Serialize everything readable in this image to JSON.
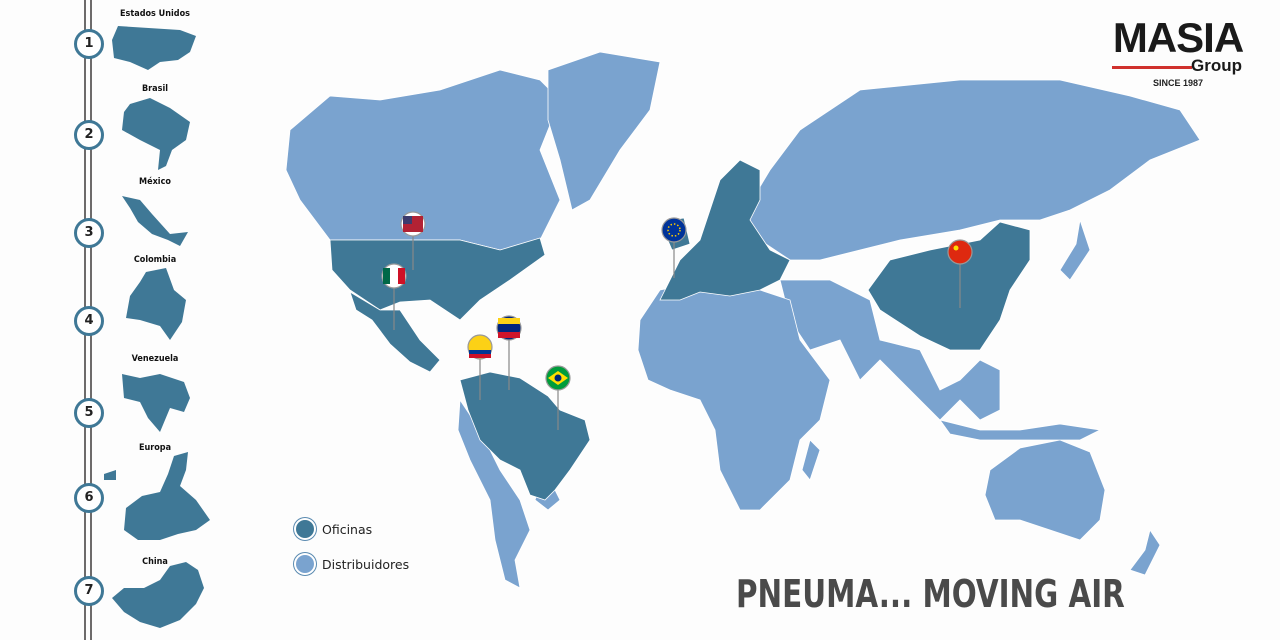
{
  "colors": {
    "office": "#3f7896",
    "distributor": "#7aa3cf",
    "accent_red": "#d0312d"
  },
  "logo": {
    "name": "MASIA",
    "sub": "Group",
    "since": "SINCE 1987"
  },
  "locations": [
    {
      "n": "1",
      "label": "Estados Unidos"
    },
    {
      "n": "2",
      "label": "Brasil"
    },
    {
      "n": "3",
      "label": "México"
    },
    {
      "n": "4",
      "label": "Colombia"
    },
    {
      "n": "5",
      "label": "Venezuela"
    },
    {
      "n": "6",
      "label": "Europa"
    },
    {
      "n": "7",
      "label": "China"
    }
  ],
  "legend": {
    "offices": "Oficinas",
    "distributors": "Distribuidores"
  },
  "slogan": "PNEUMA... MOVING AIR",
  "pins": [
    "usa-flag-icon",
    "mexico-flag-icon",
    "colombia-flag-icon",
    "venezuela-flag-icon",
    "brazil-flag-icon",
    "eu-flag-icon",
    "china-flag-icon"
  ]
}
